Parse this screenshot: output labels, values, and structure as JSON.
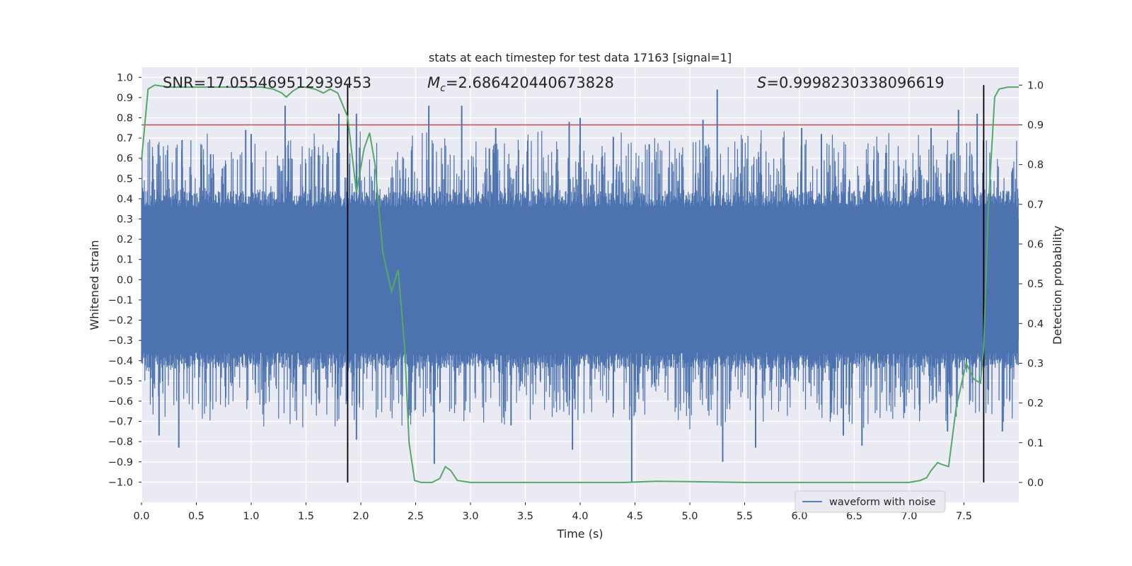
{
  "chart_data": {
    "type": "line",
    "title": "stats at each timestep for test data 17163 [signal=1]",
    "xlabel": "Time (s)",
    "ylabel": "Whitened strain",
    "ylabel_right": "Detection probability",
    "xlim": [
      0.0,
      8.0
    ],
    "ylim": [
      -1.1,
      1.05
    ],
    "ylim_right": [
      -0.05,
      1.045
    ],
    "xticks": [
      "0.0",
      "0.5",
      "1.0",
      "1.5",
      "2.0",
      "2.5",
      "3.0",
      "3.5",
      "4.0",
      "4.5",
      "5.0",
      "5.5",
      "6.0",
      "6.5",
      "7.0",
      "7.5"
    ],
    "yticks": [
      "1.0",
      "0.9",
      "0.8",
      "0.7",
      "0.6",
      "0.5",
      "0.4",
      "0.3",
      "0.2",
      "0.1",
      "0.0",
      "-0.1",
      "-0.2",
      "-0.3",
      "-0.4",
      "-0.5",
      "-0.6",
      "-0.7",
      "-0.8",
      "-0.9",
      "-1.0"
    ],
    "yticks_right": [
      "1.0",
      "0.9",
      "0.8",
      "0.7",
      "0.6",
      "0.5",
      "0.4",
      "0.3",
      "0.2",
      "0.1",
      "0.0"
    ],
    "annotations": {
      "snr": "SNR=17.055469512939453",
      "mc_symbol": "M",
      "mc_sub": "c",
      "mc_value": "=2.686420440673828",
      "s_symbol": "S",
      "s_value": "=0.9998230338096619"
    },
    "legend": {
      "label": "waveform with noise",
      "position": "lower-right"
    },
    "threshold": {
      "value": 0.9,
      "axis": "right",
      "color": "#c44e52"
    },
    "vlines": [
      1.88,
      7.68
    ],
    "waveform": {
      "name": "waveform with noise",
      "color": "#4c72b0",
      "sample_count": 1600,
      "core_amplitude": 0.36,
      "spikes": [
        {
          "x": 0.16,
          "y": -0.77
        },
        {
          "x": 0.34,
          "y": -0.83
        },
        {
          "x": 0.37,
          "y": 0.69
        },
        {
          "x": 0.63,
          "y": 0.62
        },
        {
          "x": 0.95,
          "y": 0.74
        },
        {
          "x": 1.0,
          "y": 0.72
        },
        {
          "x": 1.31,
          "y": 0.86
        },
        {
          "x": 1.8,
          "y": 0.82
        },
        {
          "x": 1.96,
          "y": 0.82
        },
        {
          "x": 1.96,
          "y": -0.79
        },
        {
          "x": 2.62,
          "y": 0.86
        },
        {
          "x": 2.67,
          "y": -0.91
        },
        {
          "x": 2.92,
          "y": 0.86
        },
        {
          "x": 3.23,
          "y": 0.75
        },
        {
          "x": 3.37,
          "y": -0.72
        },
        {
          "x": 3.9,
          "y": 0.78
        },
        {
          "x": 3.93,
          "y": -0.84
        },
        {
          "x": 4.0,
          "y": 0.8
        },
        {
          "x": 4.47,
          "y": -1.0
        },
        {
          "x": 4.63,
          "y": 0.67
        },
        {
          "x": 5.12,
          "y": 0.79
        },
        {
          "x": 5.25,
          "y": 0.94
        },
        {
          "x": 5.3,
          "y": -0.9
        },
        {
          "x": 5.6,
          "y": -0.83
        },
        {
          "x": 6.02,
          "y": 0.75
        },
        {
          "x": 6.2,
          "y": 0.72
        },
        {
          "x": 6.4,
          "y": -0.77
        },
        {
          "x": 6.57,
          "y": -0.82
        },
        {
          "x": 7.2,
          "y": 0.75
        },
        {
          "x": 7.35,
          "y": -0.75
        },
        {
          "x": 7.45,
          "y": 0.84
        },
        {
          "x": 7.62,
          "y": 0.82
        },
        {
          "x": 7.85,
          "y": -0.75
        }
      ]
    },
    "probability": {
      "name": "detection probability",
      "color": "#55a868",
      "x": [
        0.0,
        0.06,
        0.12,
        0.25,
        0.5,
        0.8,
        1.1,
        1.2,
        1.28,
        1.32,
        1.38,
        1.44,
        1.5,
        1.58,
        1.66,
        1.72,
        1.79,
        1.88,
        1.96,
        2.03,
        2.08,
        2.13,
        2.2,
        2.28,
        2.34,
        2.4,
        2.44,
        2.49,
        2.55,
        2.65,
        2.72,
        2.77,
        2.82,
        2.88,
        3.0,
        3.2,
        3.6,
        4.0,
        4.4,
        4.7,
        5.0,
        5.5,
        6.0,
        6.5,
        7.0,
        7.1,
        7.16,
        7.2,
        7.26,
        7.3,
        7.36,
        7.43,
        7.52,
        7.59,
        7.65,
        7.68,
        7.72,
        7.78,
        7.82,
        7.9,
        8.0
      ],
      "values": [
        0.81,
        0.99,
        1.0,
        0.995,
        0.995,
        0.995,
        0.995,
        0.99,
        0.98,
        0.97,
        0.985,
        0.995,
        0.995,
        0.99,
        0.98,
        0.99,
        0.98,
        0.92,
        0.73,
        0.84,
        0.88,
        0.8,
        0.58,
        0.48,
        0.535,
        0.34,
        0.1,
        0.005,
        0.0,
        0.0,
        0.01,
        0.04,
        0.03,
        0.005,
        0.0,
        0.0,
        0.0,
        0.0,
        0.0,
        0.003,
        0.002,
        0.0,
        0.0,
        0.0,
        0.0,
        0.005,
        0.012,
        0.03,
        0.05,
        0.045,
        0.04,
        0.19,
        0.3,
        0.26,
        0.25,
        0.34,
        0.68,
        0.97,
        0.99,
        0.995,
        0.995
      ]
    }
  }
}
